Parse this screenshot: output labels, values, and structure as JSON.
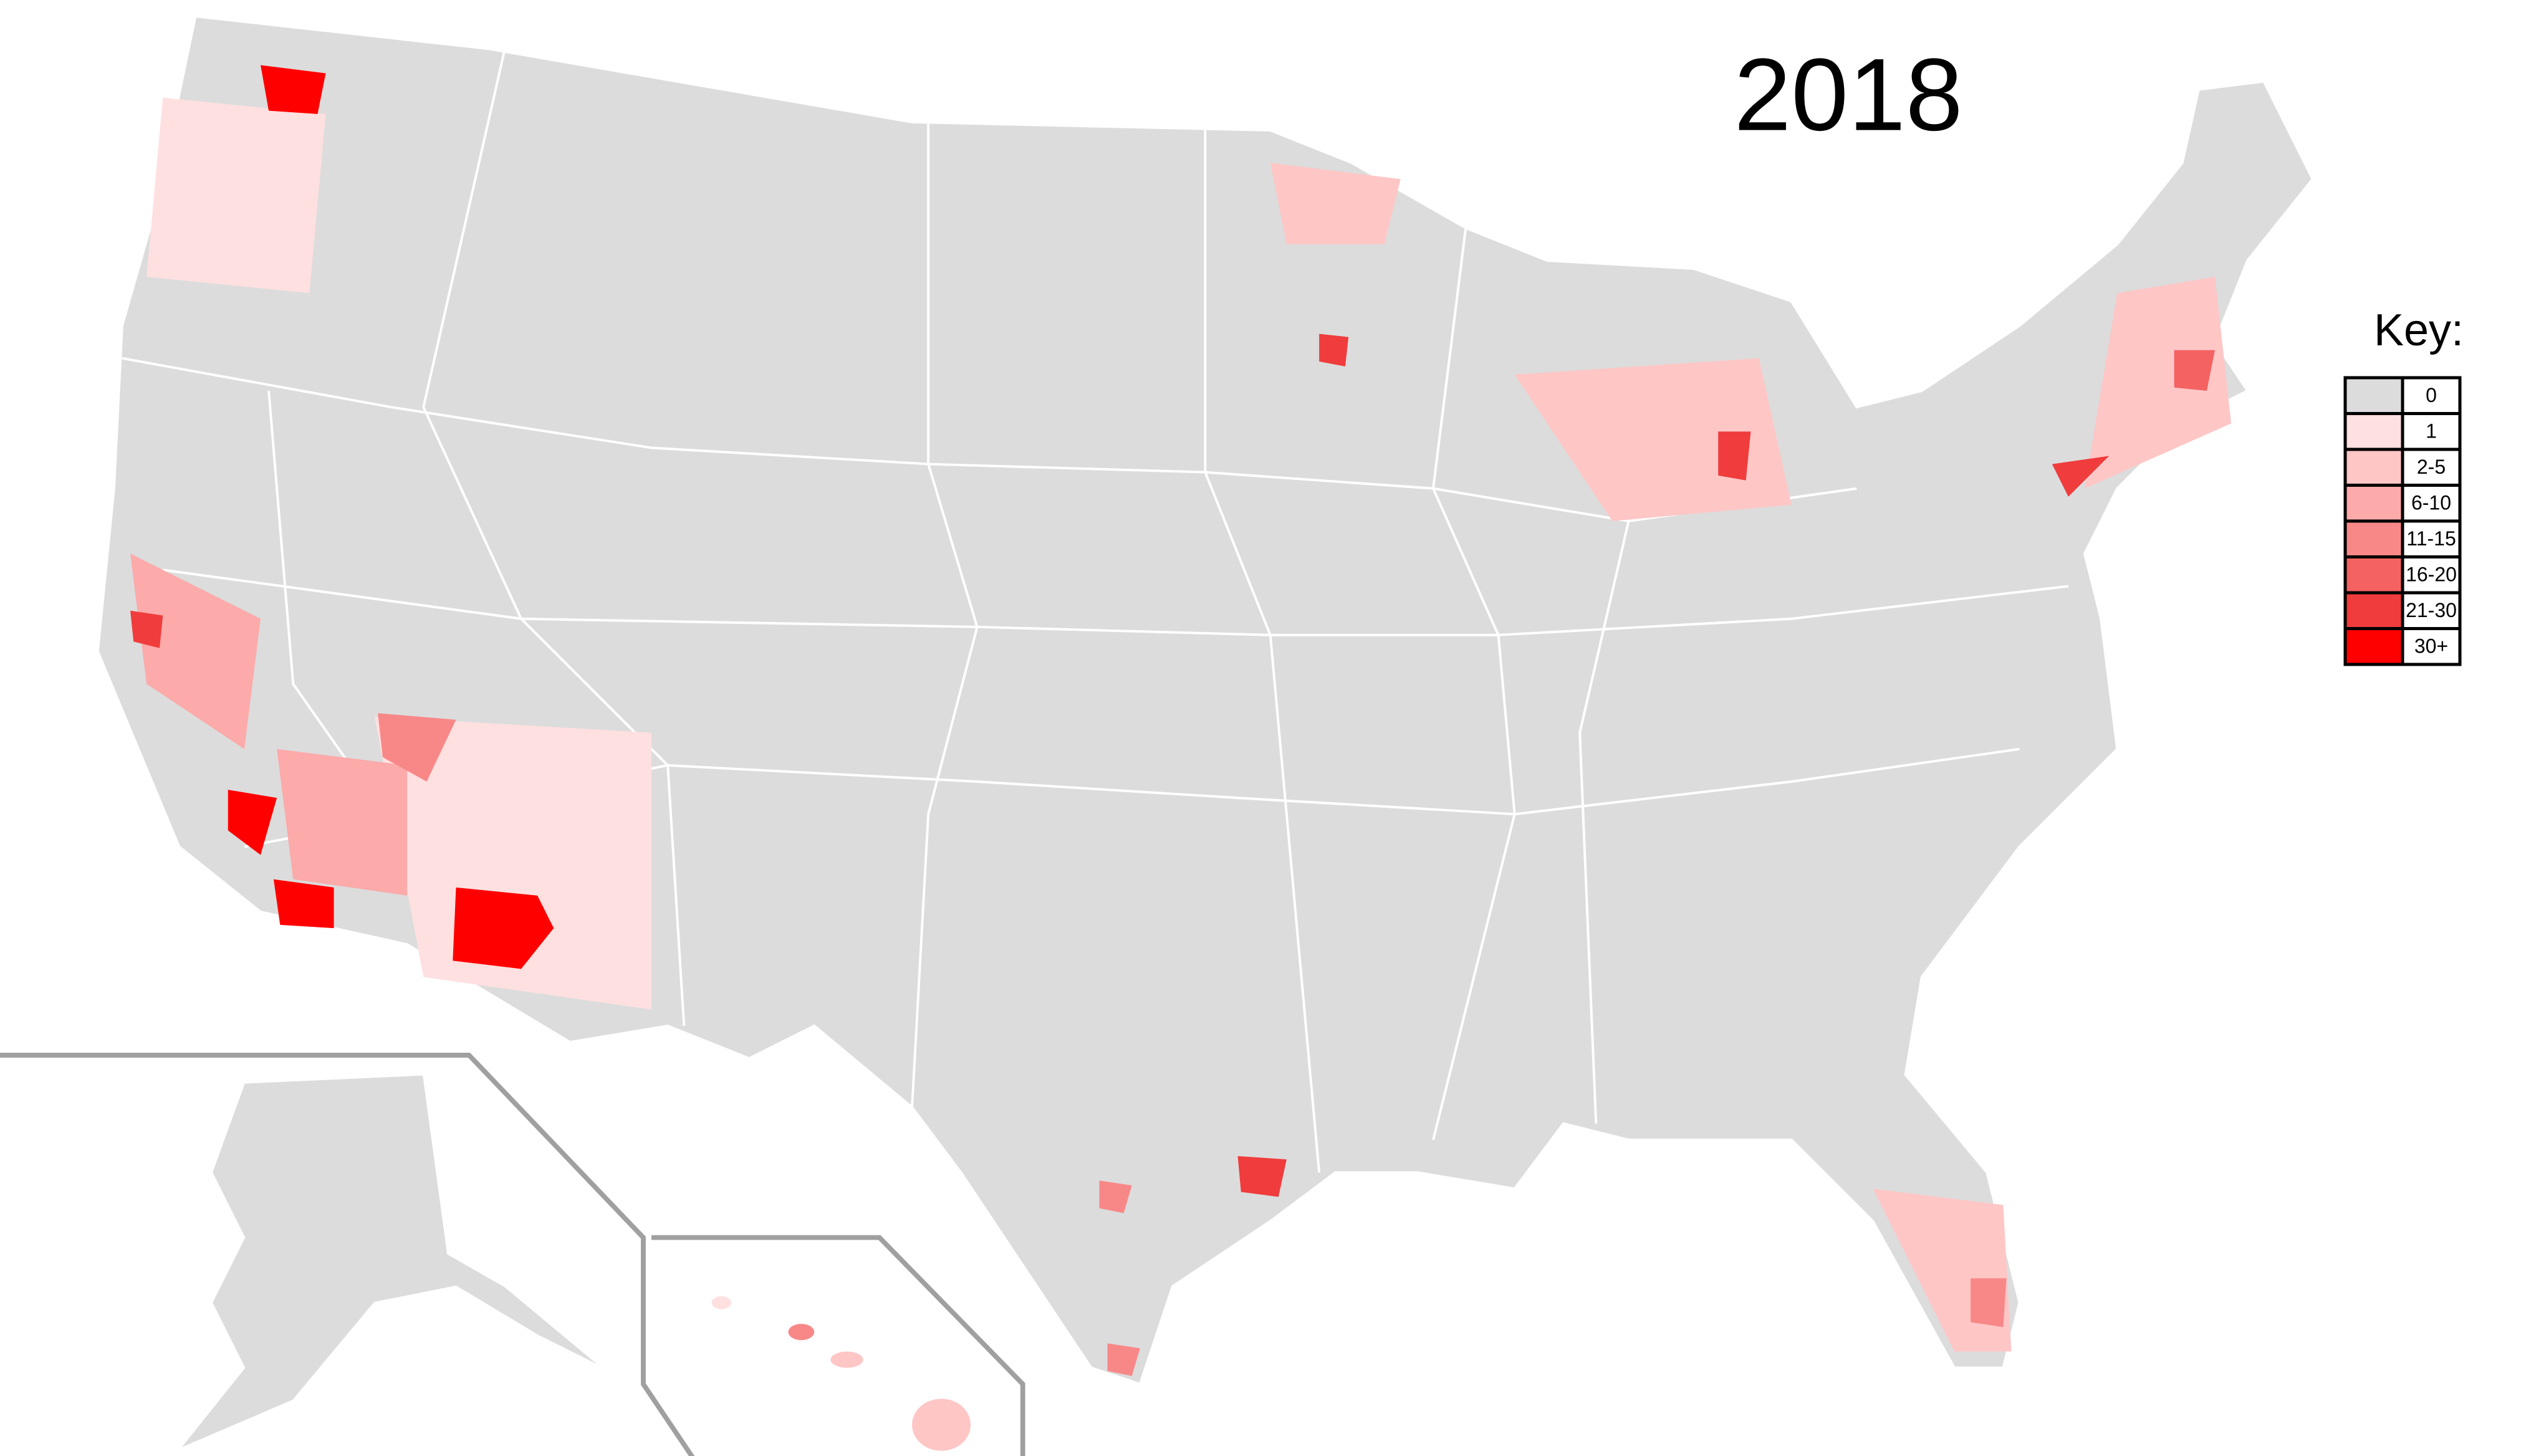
{
  "title": "2018",
  "legend": {
    "title": "Key:",
    "items": [
      {
        "label": "0",
        "color": "#dcdcdc"
      },
      {
        "label": "1",
        "color": "#ffe0e0"
      },
      {
        "label": "2-5",
        "color": "#ffc6c6"
      },
      {
        "label": "6-10",
        "color": "#fcaaaa"
      },
      {
        "label": "11-15",
        "color": "#f88888"
      },
      {
        "label": "16-20",
        "color": "#f46262"
      },
      {
        "label": "21-30",
        "color": "#f03c3c"
      },
      {
        "label": "30+",
        "color": "#ff0000"
      }
    ]
  }
}
